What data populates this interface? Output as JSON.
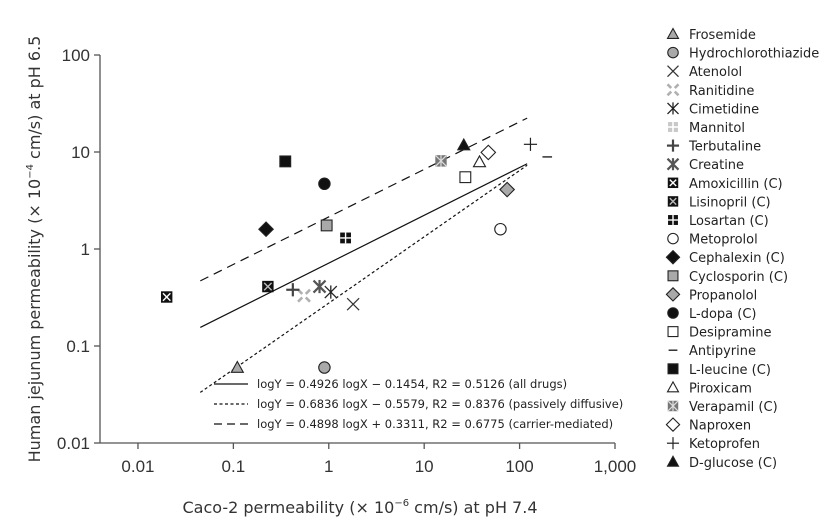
{
  "chart_data": {
    "type": "scatter",
    "xlabel_parts": [
      "Caco-2 permeability (",
      "×",
      " 10",
      "−6",
      " cm/s) at pH 7.4"
    ],
    "ylabel_parts": [
      "Human jejunum permeability (",
      "×",
      " 10",
      "−4",
      " cm/s) at pH 6.5"
    ],
    "x_scale": "log",
    "y_scale": "log",
    "xlim": [
      0.004,
      1000
    ],
    "ylim": [
      0.01,
      100
    ],
    "x_ticks": [
      0.01,
      0.1,
      1,
      10,
      100,
      1000
    ],
    "x_tick_labels": [
      "0.01",
      "0.1",
      "1",
      "10",
      "100",
      "1,000"
    ],
    "y_ticks": [
      0.01,
      0.1,
      1,
      10,
      100
    ],
    "y_tick_labels": [
      "0.01",
      "0.1",
      "1",
      "10",
      "100"
    ],
    "grid": false,
    "legend_position": "right",
    "series": [
      {
        "name": "Frosemide",
        "marker": "triangle-gray",
        "points": [
          [
            0.11,
            0.06
          ]
        ]
      },
      {
        "name": "Hydrochlorothiazide",
        "marker": "circle-gray",
        "points": [
          [
            0.9,
            0.06
          ]
        ]
      },
      {
        "name": "Atenolol",
        "marker": "x",
        "points": [
          [
            1.8,
            0.27
          ]
        ]
      },
      {
        "name": "Ranitidine",
        "marker": "x-gray",
        "points": [
          [
            0.55,
            0.33
          ]
        ]
      },
      {
        "name": "Cimetidine",
        "marker": "asterisk",
        "points": [
          [
            1.05,
            0.36
          ]
        ]
      },
      {
        "name": "Mannitol",
        "marker": "square-gray-quartered",
        "points": []
      },
      {
        "name": "Terbutaline",
        "marker": "plus-bold",
        "points": [
          [
            0.42,
            0.38
          ]
        ]
      },
      {
        "name": "Creatine",
        "marker": "asterisk-gray",
        "points": [
          [
            0.8,
            0.41
          ]
        ]
      },
      {
        "name": "Amoxicillin (C)",
        "marker": "square-x",
        "points": [
          [
            0.02,
            0.32
          ]
        ]
      },
      {
        "name": "Lisinopril (C)",
        "marker": "square-x-light",
        "points": [
          [
            0.23,
            0.41
          ]
        ]
      },
      {
        "name": "Losartan (C)",
        "marker": "square-quartered",
        "points": [
          [
            1.5,
            1.3
          ]
        ]
      },
      {
        "name": "Metoprolol",
        "marker": "circle-open",
        "points": [
          [
            63,
            1.6
          ]
        ]
      },
      {
        "name": "Cephalexin (C)",
        "marker": "diamond-black",
        "points": [
          [
            0.22,
            1.6
          ]
        ]
      },
      {
        "name": "Cyclosporin (C)",
        "marker": "square-gray",
        "points": [
          [
            0.95,
            1.75
          ]
        ]
      },
      {
        "name": "Propanolol",
        "marker": "diamond-gray",
        "points": [
          [
            74,
            4.1
          ]
        ]
      },
      {
        "name": "L-dopa (C)",
        "marker": "circle-black",
        "points": [
          [
            0.9,
            4.7
          ]
        ]
      },
      {
        "name": "Desipramine",
        "marker": "square-open",
        "points": [
          [
            27,
            5.5
          ]
        ]
      },
      {
        "name": "Antipyrine",
        "marker": "dash",
        "points": [
          [
            195,
            8.9
          ]
        ]
      },
      {
        "name": "L-leucine (C)",
        "marker": "square-black",
        "points": [
          [
            0.35,
            8.0
          ]
        ]
      },
      {
        "name": "Piroxicam",
        "marker": "triangle-open",
        "points": [
          [
            38,
            7.9
          ]
        ]
      },
      {
        "name": "Verapamil (C)",
        "marker": "square-asterisk-gray",
        "points": [
          [
            15,
            8.1
          ]
        ]
      },
      {
        "name": "Naproxen",
        "marker": "diamond-open",
        "points": [
          [
            47,
            9.9
          ]
        ]
      },
      {
        "name": "Ketoprofen",
        "marker": "plus",
        "points": [
          [
            130,
            12
          ]
        ]
      },
      {
        "name": "D-glucose (C)",
        "marker": "triangle-black",
        "points": [
          [
            26,
            11.8
          ]
        ]
      }
    ],
    "regression_lines": [
      {
        "label": "logY = 0.4926 logX − 0.1454, R2 = 0.5126 (all drugs)",
        "style": "solid",
        "slope": 0.4926,
        "intercept": -0.1454,
        "x_range": [
          0.045,
          120
        ]
      },
      {
        "label": "logY = 0.6836 logX − 0.5579, R2 = 0.8376 (passively diffusive)",
        "style": "dotted",
        "slope": 0.6836,
        "intercept": -0.5579,
        "x_range": [
          0.045,
          120
        ]
      },
      {
        "label": "logY = 0.4898 logX + 0.3311, R2 = 0.6775 (carrier-mediated)",
        "style": "dashed",
        "slope": 0.4898,
        "intercept": 0.3311,
        "x_range": [
          0.045,
          120
        ]
      }
    ]
  }
}
